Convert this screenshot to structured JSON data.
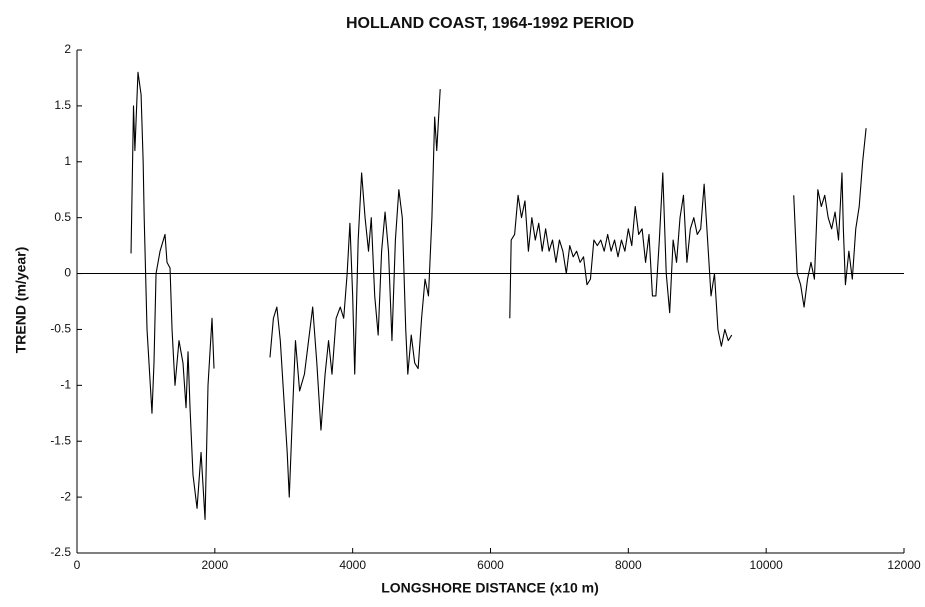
{
  "chart_data": {
    "type": "line",
    "title": "HOLLAND COAST, 1964-1992 PERIOD",
    "xlabel": "LONGSHORE DISTANCE (x10 m)",
    "ylabel": "TREND (m/year)",
    "xlim": [
      0,
      12000
    ],
    "xticks": [
      0,
      2000,
      4000,
      6000,
      8000,
      10000,
      12000
    ],
    "ylim": [
      -2.5,
      2
    ],
    "yticks": [
      2,
      1.5,
      1,
      0.5,
      0,
      -0.5,
      -1,
      -1.5,
      -2,
      -2.5
    ],
    "hline": 0,
    "x": [
      784,
      820,
      840,
      885,
      930,
      960,
      975,
      1016,
      1088,
      1117,
      1147,
      1205,
      1277,
      1306,
      1350,
      1379,
      1422,
      1480,
      1538,
      1582,
      1611,
      1640,
      1683,
      1742,
      1800,
      1858,
      1901,
      1959,
      1988,
      2400,
      2800,
      2850,
      2900,
      2950,
      3000,
      3050,
      3080,
      3130,
      3170,
      3230,
      3300,
      3380,
      3420,
      3480,
      3540,
      3600,
      3650,
      3700,
      3760,
      3820,
      3870,
      3920,
      3960,
      4000,
      4030,
      4080,
      4130,
      4180,
      4230,
      4270,
      4320,
      4370,
      4420,
      4470,
      4520,
      4570,
      4620,
      4670,
      4720,
      4770,
      4800,
      4850,
      4900,
      4950,
      5000,
      5050,
      5100,
      5150,
      5190,
      5220,
      5270,
      5800,
      6280,
      6300,
      6350,
      6400,
      6450,
      6500,
      6550,
      6600,
      6650,
      6700,
      6750,
      6800,
      6850,
      6900,
      6950,
      7000,
      7050,
      7100,
      7150,
      7200,
      7250,
      7300,
      7350,
      7400,
      7450,
      7500,
      7550,
      7600,
      7650,
      7700,
      7750,
      7800,
      7850,
      7900,
      7950,
      8000,
      8050,
      8100,
      8150,
      8200,
      8250,
      8300,
      8350,
      8400,
      8450,
      8500,
      8550,
      8600,
      8650,
      8700,
      8750,
      8800,
      8850,
      8900,
      8950,
      9000,
      9050,
      9100,
      9150,
      9200,
      9250,
      9300,
      9350,
      9400,
      9450,
      9500,
      10000,
      10400,
      10450,
      10500,
      10550,
      10600,
      10650,
      10700,
      10750,
      10800,
      10850,
      10900,
      10950,
      11000,
      11050,
      11100,
      11120,
      11150,
      11200,
      11250,
      11300,
      11350,
      11400,
      11450
    ],
    "series": [
      {
        "color": "#000000",
        "values": [
          0.18,
          1.5,
          1.1,
          1.8,
          1.6,
          1.0,
          0.5,
          -0.5,
          -1.25,
          -0.8,
          0,
          0.2,
          0.35,
          0.1,
          0.05,
          -0.5,
          -1.0,
          -0.6,
          -0.8,
          -1.2,
          -0.7,
          -1.2,
          -1.8,
          -2.1,
          -1.6,
          -2.2,
          -1.0,
          -0.4,
          -0.85,
          null,
          -0.75,
          -0.4,
          -0.3,
          -0.6,
          -1.1,
          -1.6,
          -2.0,
          -1.2,
          -0.6,
          -1.05,
          -0.9,
          -0.5,
          -0.3,
          -0.8,
          -1.4,
          -0.9,
          -0.6,
          -0.9,
          -0.4,
          -0.3,
          -0.4,
          0.0,
          0.45,
          -0.2,
          -0.9,
          0.3,
          0.9,
          0.5,
          0.2,
          0.5,
          -0.2,
          -0.55,
          0.2,
          0.55,
          0.2,
          -0.6,
          0.3,
          0.75,
          0.5,
          -0.5,
          -0.9,
          -0.55,
          -0.8,
          -0.85,
          -0.4,
          -0.05,
          -0.2,
          0.5,
          1.4,
          1.1,
          1.65,
          null,
          -0.4,
          0.3,
          0.35,
          0.7,
          0.5,
          0.65,
          0.2,
          0.5,
          0.3,
          0.45,
          0.2,
          0.4,
          0.2,
          0.3,
          0.1,
          0.3,
          0.2,
          0.0,
          0.25,
          0.15,
          0.2,
          0.1,
          0.15,
          -0.1,
          -0.05,
          0.3,
          0.25,
          0.3,
          0.2,
          0.35,
          0.2,
          0.3,
          0.15,
          0.3,
          0.2,
          0.4,
          0.25,
          0.6,
          0.35,
          0.4,
          0.1,
          0.35,
          -0.2,
          -0.2,
          0.3,
          0.9,
          0.0,
          -0.35,
          0.3,
          0.1,
          0.5,
          0.7,
          0.1,
          0.4,
          0.5,
          0.35,
          0.4,
          0.8,
          0.3,
          -0.2,
          0.0,
          -0.5,
          -0.65,
          -0.5,
          -0.6,
          -0.55,
          null,
          0.7,
          0.0,
          -0.1,
          -0.3,
          -0.05,
          0.1,
          -0.05,
          0.75,
          0.6,
          0.7,
          0.5,
          0.4,
          0.55,
          0.3,
          0.9,
          0.4,
          -0.1,
          0.2,
          -0.05,
          0.4,
          0.6,
          1.0,
          1.3
        ]
      }
    ]
  }
}
